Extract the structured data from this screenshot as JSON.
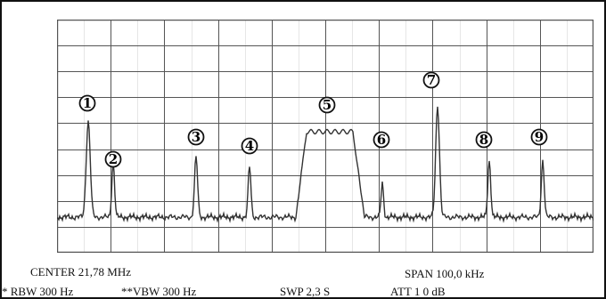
{
  "screen": {
    "center_label": "CENTER 21,78 MHz",
    "span_label": "SPAN 100,0 kHz",
    "rbw_label": "* RBW 300 Hz",
    "vbw_label": "**VBW  300 Hz",
    "swp_label": "SWP 2,3   S",
    "att_label": "ATT    1 0   dB"
  },
  "markers": [
    "1",
    "2",
    "3",
    "4",
    "5",
    "6",
    "7",
    "8",
    "9"
  ],
  "colors": {
    "grid": "#555555",
    "trace": "#333333",
    "background": "#ffffff"
  }
}
